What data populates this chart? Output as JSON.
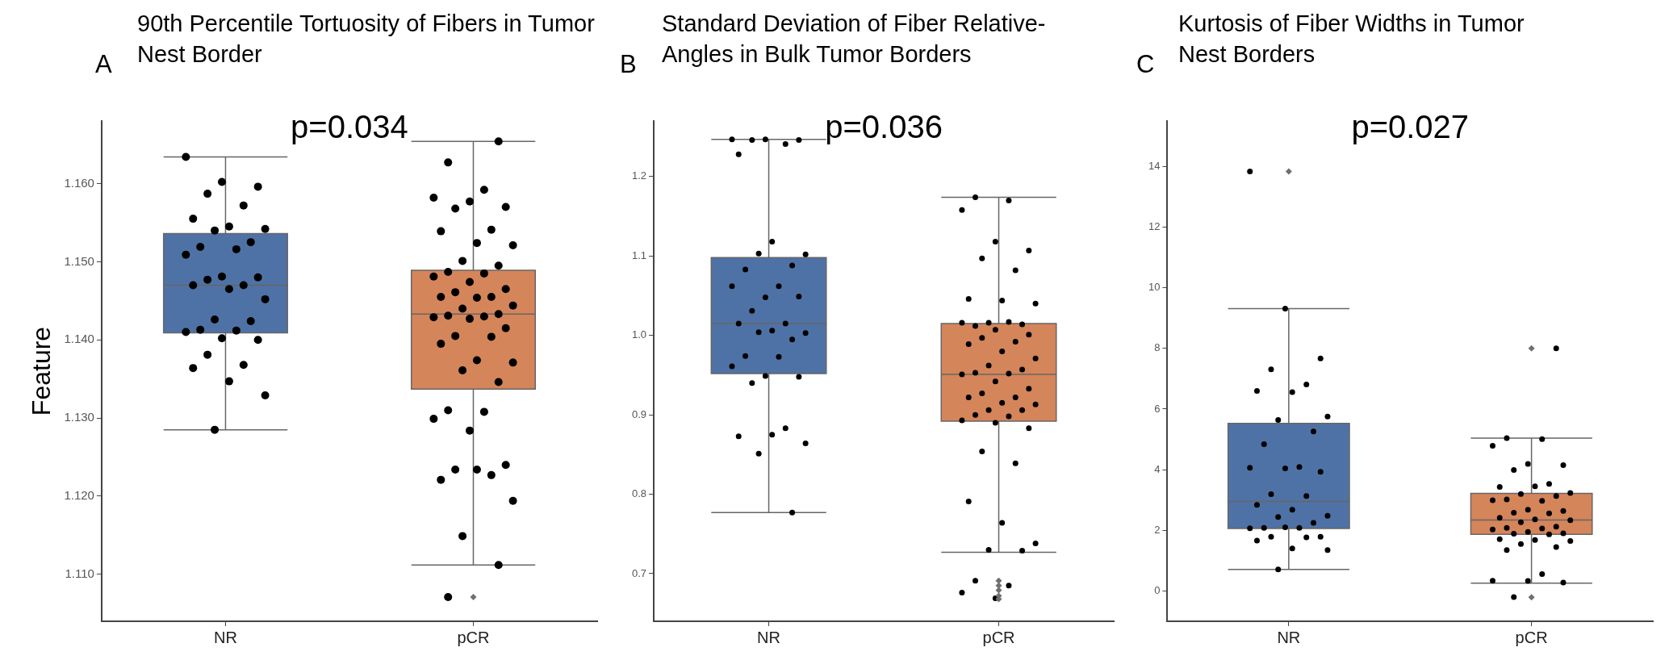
{
  "chart_data": [
    {
      "type": "box",
      "title": "90th Percentile Tortuosity of Fibers in Tumor Nest Border",
      "ylabel": "Feature",
      "annotations": [
        "A",
        "p=0.034"
      ],
      "categories": [
        "NR",
        "pCR"
      ],
      "colors": [
        "#4f72a6",
        "#d5855a"
      ],
      "boxes": [
        {
          "low": 1.1285,
          "q1": 1.1409,
          "median": 1.147,
          "q3": 1.1536,
          "high": 1.1634
        },
        {
          "low": 1.1112,
          "q1": 1.1337,
          "median": 1.1433,
          "q3": 1.1489,
          "high": 1.1654,
          "outliers": [
            1.1071
          ]
        }
      ],
      "ylim": [
        1.104,
        1.168
      ],
      "yticks": [
        {
          "value": 1.11,
          "label": "1.110"
        },
        {
          "value": 1.12,
          "label": "1.120"
        },
        {
          "value": 1.13,
          "label": "1.130"
        },
        {
          "value": 1.14,
          "label": "1.140"
        },
        {
          "value": 1.15,
          "label": "1.150"
        },
        {
          "value": 1.16,
          "label": "1.160"
        }
      ],
      "series": [
        {
          "type": "scatter",
          "color": "#000000",
          "marker": "circle",
          "x": [
            "NR",
            "NR",
            "NR",
            "NR",
            "NR",
            "NR",
            "NR",
            "NR",
            "NR",
            "NR",
            "NR",
            "NR",
            "NR",
            "NR",
            "NR",
            "NR",
            "NR",
            "NR",
            "NR",
            "NR",
            "NR",
            "NR",
            "NR",
            "NR",
            "NR",
            "NR",
            "NR",
            "NR",
            "NR",
            "NR",
            "NR",
            "NR",
            "NR",
            "pCR",
            "pCR",
            "pCR",
            "pCR",
            "pCR",
            "pCR",
            "pCR",
            "pCR",
            "pCR",
            "pCR",
            "pCR",
            "pCR",
            "pCR",
            "pCR",
            "pCR",
            "pCR",
            "pCR",
            "pCR",
            "pCR",
            "pCR",
            "pCR",
            "pCR",
            "pCR",
            "pCR",
            "pCR",
            "pCR",
            "pCR",
            "pCR",
            "pCR",
            "pCR",
            "pCR",
            "pCR",
            "pCR",
            "pCR",
            "pCR",
            "pCR",
            "pCR",
            "pCR",
            "pCR",
            "pCR",
            "pCR",
            "pCR",
            "pCR",
            "pCR",
            "pCR",
            "pCR",
            "pCR",
            "pCR",
            "pCR",
            "pCR"
          ],
          "values": [
            1.1634,
            1.1602,
            1.1596,
            1.1587,
            1.1572,
            1.1555,
            1.1545,
            1.1542,
            1.154,
            1.1525,
            1.1519,
            1.1516,
            1.1509,
            1.1481,
            1.148,
            1.1477,
            1.147,
            1.147,
            1.1465,
            1.1452,
            1.1426,
            1.1424,
            1.1413,
            1.1412,
            1.141,
            1.1402,
            1.14,
            1.1381,
            1.1368,
            1.1364,
            1.1347,
            1.1329,
            1.1285,
            1.1654,
            1.1627,
            1.1592,
            1.1582,
            1.1577,
            1.157,
            1.1568,
            1.1541,
            1.1539,
            1.1524,
            1.1521,
            1.1501,
            1.1495,
            1.1487,
            1.1485,
            1.1481,
            1.1474,
            1.1465,
            1.1461,
            1.1455,
            1.1455,
            1.1454,
            1.1444,
            1.144,
            1.1433,
            1.1431,
            1.143,
            1.1429,
            1.1427,
            1.1415,
            1.1405,
            1.1404,
            1.1395,
            1.1374,
            1.1371,
            1.1361,
            1.1346,
            1.131,
            1.1308,
            1.1299,
            1.1284,
            1.124,
            1.1234,
            1.1227,
            1.1221,
            1.1234,
            1.1194,
            1.1149,
            1.1112,
            1.1071
          ]
        }
      ]
    },
    {
      "type": "box",
      "title": "Standard Deviation of Fiber Relative-Angles in Bulk Tumor Borders",
      "annotations": [
        "B",
        "p=0.036"
      ],
      "categories": [
        "NR",
        "pCR"
      ],
      "colors": [
        "#4f72a6",
        "#d5855a"
      ],
      "boxes": [
        {
          "low": 0.777,
          "q1": 0.952,
          "median": 1.015,
          "q3": 1.098,
          "high": 1.247
        },
        {
          "low": 0.727,
          "q1": 0.892,
          "median": 0.951,
          "q3": 1.015,
          "high": 1.174,
          "outliers": [
            0.691,
            0.685,
            0.679,
            0.672,
            0.668
          ]
        }
      ],
      "ylim": [
        0.64,
        1.27
      ],
      "yticks": [
        {
          "value": 0.7,
          "label": "0.7"
        },
        {
          "value": 0.8,
          "label": "0.8"
        },
        {
          "value": 0.9,
          "label": "0.9"
        },
        {
          "value": 1.0,
          "label": "1.0"
        },
        {
          "value": 1.1,
          "label": "1.1"
        },
        {
          "value": 1.2,
          "label": "1.2"
        }
      ],
      "series": [
        {
          "type": "scatter",
          "color": "#000000",
          "marker": "circle",
          "x": [
            "NR",
            "NR",
            "NR",
            "NR",
            "NR",
            "NR",
            "NR",
            "NR",
            "NR",
            "NR",
            "NR",
            "NR",
            "NR",
            "NR",
            "NR",
            "NR",
            "NR",
            "NR",
            "NR",
            "NR",
            "NR",
            "NR",
            "NR",
            "NR",
            "NR",
            "NR",
            "NR",
            "NR",
            "NR",
            "NR",
            "NR",
            "NR",
            "NR",
            "NR",
            "pCR",
            "pCR",
            "pCR",
            "pCR",
            "pCR",
            "pCR",
            "pCR",
            "pCR",
            "pCR",
            "pCR",
            "pCR",
            "pCR",
            "pCR",
            "pCR",
            "pCR",
            "pCR",
            "pCR",
            "pCR",
            "pCR",
            "pCR",
            "pCR",
            "pCR",
            "pCR",
            "pCR",
            "pCR",
            "pCR",
            "pCR",
            "pCR",
            "pCR",
            "pCR",
            "pCR",
            "pCR",
            "pCR",
            "pCR",
            "pCR",
            "pCR",
            "pCR",
            "pCR",
            "pCR",
            "pCR",
            "pCR",
            "pCR",
            "pCR",
            "pCR",
            "pCR",
            "pCR",
            "pCR",
            "pCR",
            "pCR",
            "pCR",
            "pCR",
            "pCR"
          ],
          "values": [
            1.247,
            1.247,
            1.246,
            1.246,
            1.241,
            1.228,
            1.118,
            1.102,
            1.103,
            1.088,
            1.083,
            1.062,
            1.062,
            1.048,
            1.049,
            1.031,
            1.015,
            1.015,
            1.006,
            1.003,
            1.004,
            0.995,
            0.974,
            0.973,
            0.961,
            0.949,
            0.948,
            0.94,
            0.883,
            0.873,
            0.875,
            0.864,
            0.851,
            0.777,
            1.174,
            1.17,
            1.158,
            1.118,
            1.107,
            1.097,
            1.082,
            1.046,
            1.044,
            1.04,
            1.016,
            1.014,
            1.012,
            1.017,
            1.016,
            1.007,
            1.001,
            0.997,
            0.992,
            0.989,
            0.98,
            0.971,
            0.962,
            0.957,
            0.953,
            0.952,
            0.951,
            0.942,
            0.933,
            0.927,
            0.922,
            0.922,
            0.915,
            0.913,
            0.906,
            0.906,
            0.9,
            0.898,
            0.893,
            0.89,
            0.883,
            0.854,
            0.839,
            0.791,
            0.764,
            0.738,
            0.73,
            0.729,
            0.691,
            0.685,
            0.676,
            0.669
          ]
        }
      ]
    },
    {
      "type": "box",
      "title": "Kurtosis of Fiber Widths in Tumor Nest Borders",
      "annotations": [
        "C",
        "p=0.027"
      ],
      "categories": [
        "NR",
        "pCR"
      ],
      "colors": [
        "#4f72a6",
        "#d5855a"
      ],
      "boxes": [
        {
          "low": 0.71,
          "q1": 2.06,
          "median": 2.95,
          "q3": 5.53,
          "high": 9.31,
          "outliers": [
            13.84
          ]
        },
        {
          "low": 0.26,
          "q1": 1.87,
          "median": 2.34,
          "q3": 3.22,
          "high": 5.04,
          "outliers": [
            8.0,
            -0.21
          ]
        }
      ],
      "ylim": [
        -1,
        15.5
      ],
      "yticks": [
        0,
        2,
        4,
        6,
        8,
        10,
        12,
        14
      ],
      "series": [
        {
          "type": "scatter",
          "color": "#000000",
          "marker": "circle",
          "x": [
            "NR",
            "NR",
            "NR",
            "NR",
            "NR",
            "NR",
            "NR",
            "NR",
            "NR",
            "NR",
            "NR",
            "NR",
            "NR",
            "NR",
            "NR",
            "NR",
            "NR",
            "NR",
            "NR",
            "NR",
            "NR",
            "NR",
            "NR",
            "NR",
            "NR",
            "NR",
            "NR",
            "NR",
            "NR",
            "NR",
            "NR",
            "NR",
            "NR",
            "pCR",
            "pCR",
            "pCR",
            "pCR",
            "pCR",
            "pCR",
            "pCR",
            "pCR",
            "pCR",
            "pCR",
            "pCR",
            "pCR",
            "pCR",
            "pCR",
            "pCR",
            "pCR",
            "pCR",
            "pCR",
            "pCR",
            "pCR",
            "pCR",
            "pCR",
            "pCR",
            "pCR",
            "pCR",
            "pCR",
            "pCR",
            "pCR",
            "pCR",
            "pCR",
            "pCR",
            "pCR",
            "pCR",
            "pCR",
            "pCR",
            "pCR",
            "pCR",
            "pCR",
            "pCR",
            "pCR",
            "pCR",
            "pCR",
            "pCR"
          ],
          "values": [
            13.84,
            9.31,
            7.67,
            7.31,
            6.81,
            6.6,
            6.56,
            5.75,
            5.64,
            5.26,
            4.84,
            4.09,
            4.06,
            4.04,
            3.93,
            3.19,
            3.13,
            2.84,
            2.68,
            2.48,
            2.44,
            2.25,
            2.08,
            2.08,
            2.07,
            2.1,
            1.79,
            1.79,
            1.77,
            1.66,
            1.4,
            1.35,
            0.71,
            8.0,
            5.04,
            5.01,
            4.79,
            4.19,
            4.15,
            3.99,
            3.53,
            3.43,
            3.45,
            3.23,
            3.2,
            3.13,
            3.02,
            2.97,
            2.99,
            2.68,
            2.64,
            2.58,
            2.56,
            2.41,
            2.36,
            2.33,
            2.27,
            2.12,
            2.08,
            2.06,
            2.03,
            1.95,
            1.9,
            1.89,
            1.87,
            1.71,
            1.68,
            1.65,
            1.55,
            1.45,
            1.35,
            0.56,
            0.34,
            0.33,
            0.28,
            -0.2
          ]
        }
      ]
    }
  ]
}
